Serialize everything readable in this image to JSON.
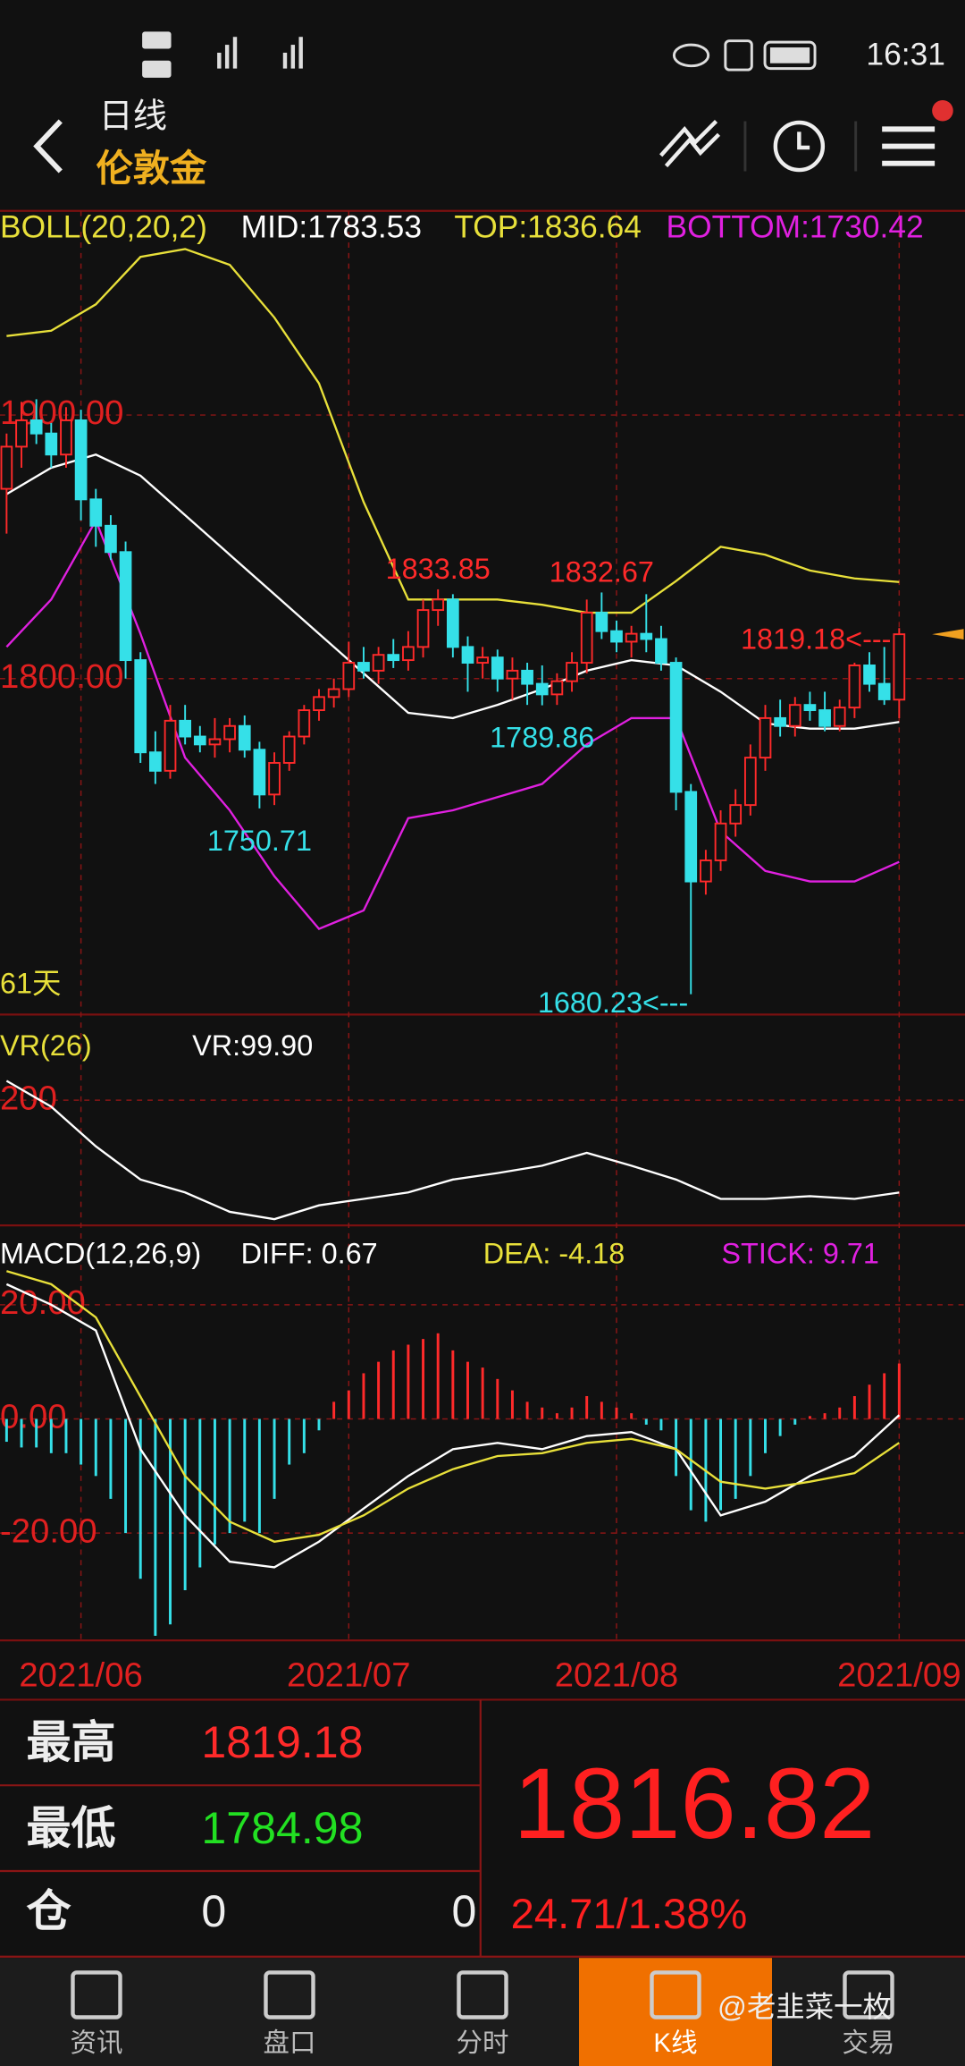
{
  "status": {
    "time": "16:31"
  },
  "header": {
    "period": "日线",
    "name": "伦敦金"
  },
  "chart_data": [
    {
      "type": "candlestick",
      "indicator": "BOLL(20,20,2)",
      "indicator_color": "#e8e03a",
      "up_color": "#ff2a2a",
      "down_color": "#35e0e8",
      "marker_color": "#f0a020",
      "ylim": [
        1672.5,
        1965
      ],
      "yticks": [
        {
          "value": 1900,
          "label": "1900.00"
        },
        {
          "value": 1800,
          "label": "1800.00"
        }
      ],
      "xticks": [
        {
          "value": 5,
          "label": "2021/06"
        },
        {
          "value": 23,
          "label": "2021/07"
        },
        {
          "value": 41,
          "label": "2021/08"
        },
        {
          "value": 60,
          "label": "2021/09"
        }
      ],
      "grid": true,
      "period_label": "61天",
      "candles": [
        [
          1872,
          1893,
          1855,
          1888
        ],
        [
          1888,
          1905,
          1880,
          1898
        ],
        [
          1898,
          1906,
          1889,
          1893
        ],
        [
          1893,
          1897,
          1880,
          1885
        ],
        [
          1885,
          1903,
          1880,
          1898
        ],
        [
          1898,
          1902,
          1860,
          1868
        ],
        [
          1868,
          1872,
          1850,
          1858
        ],
        [
          1858,
          1862,
          1845,
          1848
        ],
        [
          1848,
          1852,
          1800,
          1807
        ],
        [
          1807,
          1810,
          1768,
          1772
        ],
        [
          1772,
          1780,
          1760,
          1765
        ],
        [
          1765,
          1790,
          1762,
          1784
        ],
        [
          1784,
          1790,
          1775,
          1778
        ],
        [
          1778,
          1782,
          1772,
          1775
        ],
        [
          1775,
          1785,
          1770,
          1777
        ],
        [
          1777,
          1785,
          1772,
          1782
        ],
        [
          1782,
          1786,
          1770,
          1773
        ],
        [
          1773,
          1776,
          1750.71,
          1756
        ],
        [
          1756,
          1772,
          1752,
          1768
        ],
        [
          1768,
          1780,
          1765,
          1778
        ],
        [
          1778,
          1790,
          1775,
          1788
        ],
        [
          1788,
          1796,
          1784,
          1793
        ],
        [
          1793,
          1800,
          1789,
          1796
        ],
        [
          1796,
          1814,
          1793,
          1806
        ],
        [
          1806,
          1812,
          1800,
          1803
        ],
        [
          1803,
          1812,
          1798,
          1809
        ],
        [
          1809,
          1815,
          1804,
          1807
        ],
        [
          1807,
          1818,
          1803,
          1812
        ],
        [
          1812,
          1830,
          1808,
          1826
        ],
        [
          1826,
          1833.85,
          1820,
          1830
        ],
        [
          1830,
          1832,
          1808,
          1812
        ],
        [
          1812,
          1816,
          1795,
          1806
        ],
        [
          1806,
          1812,
          1800,
          1808
        ],
        [
          1808,
          1811,
          1795,
          1800
        ],
        [
          1800,
          1808,
          1792,
          1803
        ],
        [
          1803,
          1806,
          1790,
          1798
        ],
        [
          1798,
          1805,
          1789.86,
          1794
        ],
        [
          1794,
          1802,
          1790,
          1799
        ],
        [
          1799,
          1810,
          1795,
          1806
        ],
        [
          1806,
          1830,
          1802,
          1825
        ],
        [
          1825,
          1832.67,
          1815,
          1818
        ],
        [
          1818,
          1822,
          1810,
          1814
        ],
        [
          1814,
          1820,
          1808,
          1817
        ],
        [
          1817,
          1832,
          1810,
          1815
        ],
        [
          1815,
          1820,
          1803,
          1806
        ],
        [
          1806,
          1808,
          1750,
          1757
        ],
        [
          1757,
          1760,
          1680.23,
          1723
        ],
        [
          1723,
          1735,
          1718,
          1731
        ],
        [
          1731,
          1750,
          1727,
          1745
        ],
        [
          1745,
          1758,
          1740,
          1752
        ],
        [
          1752,
          1775,
          1748,
          1770
        ],
        [
          1770,
          1790,
          1765,
          1785
        ],
        [
          1785,
          1792,
          1778,
          1782
        ],
        [
          1782,
          1793,
          1778,
          1790
        ],
        [
          1790,
          1795,
          1784,
          1788
        ],
        [
          1788,
          1795,
          1780,
          1782
        ],
        [
          1782,
          1792,
          1780,
          1789
        ],
        [
          1789,
          1806,
          1785,
          1805
        ],
        [
          1805,
          1810,
          1795,
          1798
        ],
        [
          1798,
          1812,
          1790,
          1792.11
        ],
        [
          1792,
          1819.18,
          1784.98,
          1816.82
        ]
      ],
      "x": [
        0,
        3,
        6,
        9,
        12,
        15,
        18,
        21,
        24,
        27,
        30,
        33,
        36,
        39,
        42,
        45,
        48,
        51,
        54,
        57,
        60
      ],
      "series": [
        {
          "name": "MID:1783.53",
          "color": "#ffffff",
          "values": [
            1870,
            1880,
            1885,
            1877,
            1862,
            1847,
            1832,
            1817,
            1802,
            1787,
            1785,
            1790,
            1796,
            1803,
            1807,
            1805,
            1795,
            1783,
            1781,
            1781,
            1783.53
          ]
        },
        {
          "name": "TOP:1836.64",
          "color": "#e8e03a",
          "values": [
            1930,
            1932,
            1942,
            1960,
            1963,
            1957,
            1937,
            1912,
            1867,
            1830,
            1830,
            1830,
            1828,
            1825,
            1825,
            1837,
            1850,
            1847,
            1841,
            1838,
            1836.64
          ]
        },
        {
          "name": "BOTTOM:1730.42",
          "color": "#e020e0",
          "values": [
            1812,
            1830,
            1860,
            1817,
            1770,
            1750,
            1725,
            1705,
            1712,
            1747,
            1750,
            1755,
            1760,
            1775,
            1785,
            1785,
            1742,
            1727,
            1723,
            1723,
            1730.42
          ]
        }
      ],
      "annotations": [
        {
          "index": 29,
          "label": "1833.85",
          "side": "above"
        },
        {
          "index": 40,
          "label": "1832.67",
          "side": "above"
        },
        {
          "index": 36,
          "label": "1789.86",
          "side": "below"
        },
        {
          "index": 17,
          "label": "1750.71",
          "side": "below"
        },
        {
          "index": 46,
          "label": "1680.23<---",
          "side": "low-left"
        },
        {
          "index": 60,
          "label": "1819.18<---",
          "side": "high-left"
        }
      ]
    },
    {
      "type": "line",
      "title": "VR(26)",
      "title_color": "#e8e03a",
      "ylim": [
        64.3,
        278.6
      ],
      "yticks": [
        200
      ],
      "grid": true,
      "x": [
        0,
        3,
        6,
        9,
        12,
        15,
        18,
        21,
        24,
        27,
        30,
        33,
        36,
        39,
        42,
        45,
        48,
        51,
        54,
        57,
        60
      ],
      "series": [
        {
          "name": "VR:99.90",
          "color": "#ffffff",
          "values": [
            221,
            193,
            150,
            114,
            100,
            79,
            71,
            86,
            93,
            100,
            114,
            121,
            129,
            143,
            129,
            114,
            93,
            93,
            96,
            93,
            99.9
          ]
        }
      ]
    },
    {
      "type": "macd",
      "title": "MACD(12,26,9)",
      "title_color": "#ffffff",
      "ylim": [
        -38.8,
        31.6
      ],
      "yticks": [
        {
          "value": 20,
          "label": "20.00"
        },
        {
          "value": 0,
          "label": "0.00"
        },
        {
          "value": -20,
          "label": "-20.00"
        }
      ],
      "grid": true,
      "x": [
        0,
        3,
        6,
        9,
        12,
        15,
        18,
        21,
        24,
        27,
        30,
        33,
        36,
        39,
        42,
        45,
        48,
        51,
        54,
        57,
        60
      ],
      "series": [
        {
          "name": "DIFF: 0.67",
          "color": "#ffffff",
          "values": [
            23.6,
            20,
            15.5,
            -5.3,
            -16.9,
            -25,
            -26,
            -21.5,
            -15.7,
            -10,
            -5.3,
            -4.2,
            -5.3,
            -3,
            -2.3,
            -5.3,
            -16.9,
            -14.5,
            -10,
            -6.5,
            0.67
          ]
        },
        {
          "name": "DEA: -4.18",
          "color": "#e8e03a",
          "values": [
            25.9,
            23.6,
            17.8,
            3.9,
            -10,
            -18,
            -21.5,
            -20.3,
            -16.9,
            -12.2,
            -8.8,
            -6.5,
            -6,
            -4.2,
            -3.5,
            -5.3,
            -11,
            -12.2,
            -11,
            -9.5,
            -4.18
          ]
        }
      ],
      "stick": {
        "name": "STICK: 9.71",
        "name_color": "#e020e0",
        "up_color": "#ff2a2a",
        "down_color": "#35e0e8",
        "values": [
          -4,
          -5,
          -5,
          -6,
          -6,
          -8,
          -10,
          -14,
          -20,
          -28,
          -38,
          -36,
          -30,
          -26,
          -22,
          -20,
          -18,
          -20,
          -14,
          -8,
          -6,
          -2,
          3,
          5,
          8,
          10,
          12,
          13,
          14,
          15,
          12,
          10,
          9,
          7,
          5,
          3,
          2,
          1,
          2,
          4,
          3,
          2,
          1,
          -1,
          -2,
          -10,
          -16,
          -18,
          -16,
          -14,
          -10,
          -6,
          -3,
          -1,
          0.5,
          1,
          2,
          4,
          6,
          8,
          9.71
        ]
      }
    }
  ],
  "info": {
    "high_label": "最高",
    "high": "1819.18",
    "low_label": "最低",
    "low": "1784.98",
    "pos_label": "仓",
    "pos1": "0",
    "pos2": "0",
    "price": "1816.82",
    "change": "24.71/1.38%"
  },
  "tabs": [
    "资讯",
    "盘口",
    "分时",
    "K线",
    "交易"
  ],
  "active_tab": 3,
  "watermark": "@老韭菜一枚"
}
